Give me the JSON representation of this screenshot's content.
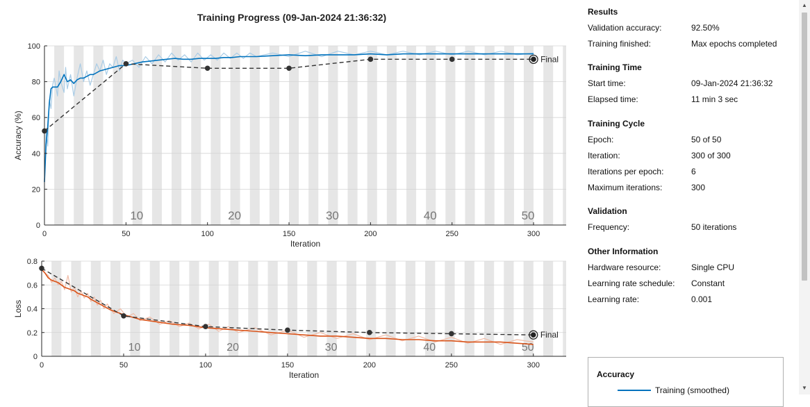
{
  "title": "Training Progress (09-Jan-2024 21:36:32)",
  "colors": {
    "training": "#0072BD",
    "training_raw": "#a9cce6",
    "loss": "#D95319",
    "loss_raw": "#f0bba6",
    "validation": "#333333",
    "epoch_band": "#e6e6e6"
  },
  "chart_data": [
    {
      "type": "line",
      "name": "accuracy-plot",
      "xlabel": "Iteration",
      "ylabel": "Accuracy (%)",
      "xlim": [
        0,
        300
      ],
      "ylim": [
        0,
        100
      ],
      "xticks": [
        0,
        50,
        100,
        150,
        200,
        250,
        300
      ],
      "yticks": [
        0,
        20,
        40,
        60,
        80,
        100
      ],
      "epoch_labels": [
        "10",
        "20",
        "30",
        "40",
        "50"
      ],
      "epoch_label_iterations": [
        60,
        120,
        180,
        240,
        300
      ],
      "final_label": "Final",
      "training_smoothed": {
        "x": [
          0,
          1,
          2,
          3,
          4,
          5,
          6,
          8,
          10,
          12,
          14,
          16,
          18,
          20,
          22,
          24,
          26,
          28,
          30,
          34,
          38,
          42,
          46,
          50,
          55,
          60,
          65,
          70,
          75,
          80,
          85,
          90,
          95,
          100,
          105,
          110,
          115,
          120,
          125,
          130,
          140,
          150,
          160,
          170,
          180,
          190,
          200,
          210,
          220,
          230,
          240,
          250,
          260,
          270,
          280,
          290,
          300
        ],
        "y": [
          24,
          45,
          55,
          68,
          76,
          77,
          77,
          77,
          80,
          84,
          80,
          81,
          79,
          81,
          82,
          82,
          83,
          84,
          84,
          86,
          87,
          88,
          89,
          89,
          90,
          91,
          91.5,
          92,
          92.5,
          93,
          92.5,
          92.5,
          93,
          93,
          93,
          93.5,
          93.5,
          94,
          94,
          94,
          94.5,
          95,
          94.5,
          95,
          95,
          95,
          95.5,
          95,
          95.5,
          95.5,
          95.5,
          95.5,
          95.5,
          95.5,
          95.5,
          95.5,
          95.5
        ]
      },
      "training_raw": {
        "x": [
          0,
          1,
          2,
          3,
          4,
          5,
          6,
          8,
          9,
          10,
          12,
          13,
          14,
          16,
          18,
          20,
          22,
          24,
          26,
          28,
          30,
          32,
          34,
          36,
          38,
          40,
          42,
          44,
          46,
          48,
          50,
          54,
          58,
          62,
          66,
          70,
          74,
          78,
          82,
          86,
          90,
          94,
          98,
          102,
          106,
          110,
          114,
          118,
          122,
          126,
          130,
          140,
          150,
          160,
          170,
          180,
          190,
          200,
          210,
          220,
          230,
          240,
          250,
          260,
          270,
          280,
          290,
          300
        ],
        "y": [
          24,
          52,
          44,
          70,
          65,
          78,
          82,
          72,
          86,
          80,
          74,
          88,
          76,
          84,
          72,
          82,
          90,
          80,
          86,
          78,
          84,
          90,
          86,
          92,
          84,
          90,
          88,
          94,
          86,
          92,
          90,
          92,
          88,
          94,
          90,
          95,
          91,
          96,
          92,
          95,
          91,
          96,
          92,
          95,
          92,
          96,
          93,
          96,
          93,
          96,
          94,
          96,
          94,
          97,
          94,
          97,
          95,
          97,
          95,
          97,
          95,
          97,
          95,
          97,
          95,
          97,
          95,
          96
        ]
      },
      "validation": {
        "x": [
          0,
          50,
          100,
          150,
          200,
          250,
          300
        ],
        "y": [
          52.5,
          90,
          87.5,
          87.5,
          92.5,
          92.5,
          92.5
        ]
      }
    },
    {
      "type": "line",
      "name": "loss-plot",
      "xlabel": "Iteration",
      "ylabel": "Loss",
      "xlim": [
        0,
        300
      ],
      "ylim": [
        0,
        0.8
      ],
      "xticks": [
        0,
        50,
        100,
        150,
        200,
        250,
        300
      ],
      "yticks": [
        0,
        0.2,
        0.4,
        0.6,
        0.8
      ],
      "epoch_labels": [
        "10",
        "20",
        "30",
        "40",
        "50"
      ],
      "epoch_label_iterations": [
        60,
        120,
        180,
        240,
        300
      ],
      "final_label": "Final",
      "training_smoothed": {
        "x": [
          0,
          2,
          4,
          6,
          8,
          10,
          12,
          14,
          16,
          18,
          20,
          22,
          24,
          26,
          28,
          30,
          34,
          38,
          42,
          46,
          50,
          60,
          70,
          80,
          90,
          100,
          110,
          120,
          130,
          140,
          150,
          160,
          170,
          180,
          190,
          200,
          210,
          220,
          230,
          240,
          250,
          260,
          270,
          280,
          290,
          300
        ],
        "y": [
          0.73,
          0.7,
          0.66,
          0.64,
          0.63,
          0.62,
          0.6,
          0.58,
          0.57,
          0.56,
          0.55,
          0.53,
          0.52,
          0.51,
          0.5,
          0.48,
          0.45,
          0.42,
          0.39,
          0.37,
          0.35,
          0.31,
          0.29,
          0.27,
          0.26,
          0.24,
          0.23,
          0.22,
          0.21,
          0.2,
          0.19,
          0.18,
          0.17,
          0.17,
          0.16,
          0.15,
          0.15,
          0.14,
          0.14,
          0.13,
          0.13,
          0.12,
          0.12,
          0.12,
          0.11,
          0.1
        ]
      },
      "training_raw": {
        "x": [
          0,
          2,
          4,
          6,
          8,
          10,
          12,
          14,
          16,
          18,
          20,
          22,
          24,
          26,
          28,
          30,
          32,
          34,
          36,
          38,
          40,
          44,
          48,
          52,
          56,
          60,
          66,
          72,
          78,
          84,
          90,
          96,
          102,
          108,
          114,
          120,
          130,
          140,
          150,
          160,
          170,
          180,
          190,
          200,
          210,
          220,
          230,
          240,
          250,
          260,
          270,
          280,
          290,
          300
        ],
        "y": [
          0.74,
          0.7,
          0.68,
          0.62,
          0.66,
          0.6,
          0.63,
          0.56,
          0.68,
          0.54,
          0.58,
          0.5,
          0.55,
          0.49,
          0.53,
          0.46,
          0.5,
          0.43,
          0.47,
          0.4,
          0.44,
          0.36,
          0.4,
          0.33,
          0.36,
          0.3,
          0.33,
          0.27,
          0.3,
          0.25,
          0.28,
          0.23,
          0.27,
          0.21,
          0.25,
          0.2,
          0.24,
          0.18,
          0.22,
          0.16,
          0.2,
          0.15,
          0.19,
          0.14,
          0.18,
          0.13,
          0.17,
          0.12,
          0.16,
          0.11,
          0.15,
          0.1,
          0.14,
          0.12
        ]
      },
      "validation": {
        "x": [
          0,
          50,
          100,
          150,
          200,
          250,
          300
        ],
        "y": [
          0.74,
          0.34,
          0.25,
          0.22,
          0.2,
          0.19,
          0.18
        ]
      }
    }
  ],
  "info": {
    "results": {
      "title": "Results",
      "rows": [
        {
          "label": "Validation accuracy:",
          "value": "92.50%"
        },
        {
          "label": "Training finished:",
          "value": "Max epochs completed"
        }
      ]
    },
    "training_time": {
      "title": "Training Time",
      "rows": [
        {
          "label": "Start time:",
          "value": "09-Jan-2024 21:36:32"
        },
        {
          "label": "Elapsed time:",
          "value": "11 min 3 sec"
        }
      ]
    },
    "training_cycle": {
      "title": "Training Cycle",
      "rows": [
        {
          "label": "Epoch:",
          "value": "50 of 50"
        },
        {
          "label": "Iteration:",
          "value": "300 of 300"
        },
        {
          "label": "Iterations per epoch:",
          "value": "6"
        },
        {
          "label": "Maximum iterations:",
          "value": "300"
        }
      ]
    },
    "validation": {
      "title": "Validation",
      "rows": [
        {
          "label": "Frequency:",
          "value": "50 iterations"
        }
      ]
    },
    "other": {
      "title": "Other Information",
      "rows": [
        {
          "label": "Hardware resource:",
          "value": "Single CPU"
        },
        {
          "label": "Learning rate schedule:",
          "value": "Constant"
        },
        {
          "label": "Learning rate:",
          "value": "0.001"
        }
      ]
    }
  },
  "legend": {
    "title": "Accuracy",
    "items": [
      {
        "label": "Training (smoothed)",
        "color": "#0072BD"
      }
    ]
  },
  "scrollbar": {
    "up_arrow": "▲",
    "down_arrow": "▼"
  }
}
